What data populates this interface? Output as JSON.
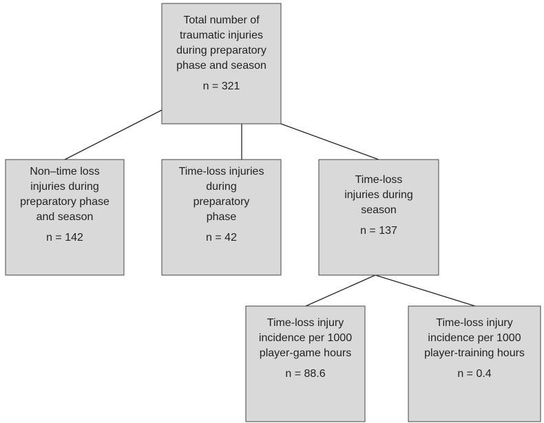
{
  "nodes": [
    {
      "label": [
        "Total number of",
        "traumatic injuries",
        "during preparatory",
        "phase and season"
      ],
      "count": "n = 321"
    },
    {
      "label": [
        "Non–time loss",
        "injuries during",
        "preparatory phase",
        "and season"
      ],
      "count": "n = 142"
    },
    {
      "label": [
        "Time-loss injuries",
        "during",
        "preparatory",
        "phase"
      ],
      "count": "n = 42"
    },
    {
      "label": [
        "Time-loss",
        "injuries during",
        "season"
      ],
      "count": "n = 137"
    },
    {
      "label": [
        "Time-loss injury",
        "incidence per 1000",
        "player-game hours"
      ],
      "count": "n = 88.6"
    },
    {
      "label": [
        "Time-loss injury",
        "incidence per 1000",
        "player-training hours"
      ],
      "count": "n = 0.4"
    }
  ]
}
